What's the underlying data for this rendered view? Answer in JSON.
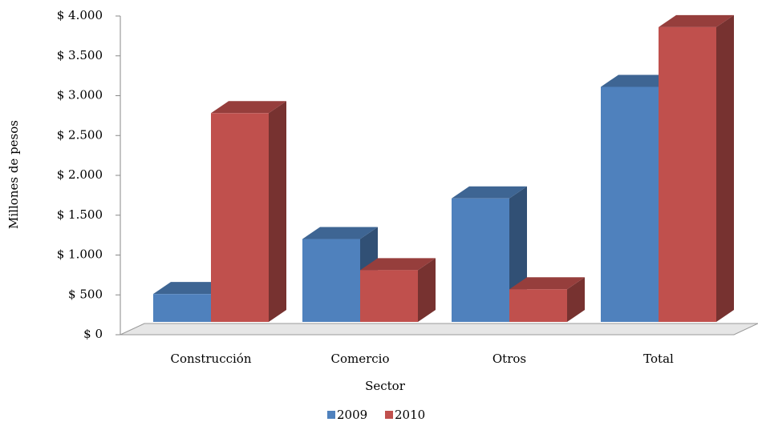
{
  "chart_data": {
    "type": "bar3d",
    "categories": [
      "Construcción",
      "Comercio",
      "Otros",
      "Total"
    ],
    "series": [
      {
        "name": "2009",
        "color": "#4f81bd",
        "values": [
          350,
          1040,
          1550,
          2950
        ]
      },
      {
        "name": "2010",
        "color": "#c0504d",
        "values": [
          2620,
          650,
          410,
          3700
        ]
      }
    ],
    "ylim": [
      0,
      4000
    ],
    "yticks": [
      {
        "value": 0,
        "label": "$ 0"
      },
      {
        "value": 500,
        "label": "$ 500"
      },
      {
        "value": 1000,
        "label": "$ 1.000"
      },
      {
        "value": 1500,
        "label": "$ 1.500"
      },
      {
        "value": 2000,
        "label": "$ 2.000"
      },
      {
        "value": 2500,
        "label": "$ 2.500"
      },
      {
        "value": 3000,
        "label": "$ 3.000"
      },
      {
        "value": 3500,
        "label": "$ 3.500"
      },
      {
        "value": 4000,
        "label": "$ 4.000"
      }
    ],
    "xlabel": "Sector",
    "ylabel": "Millones de pesos",
    "legend": "bottom"
  }
}
